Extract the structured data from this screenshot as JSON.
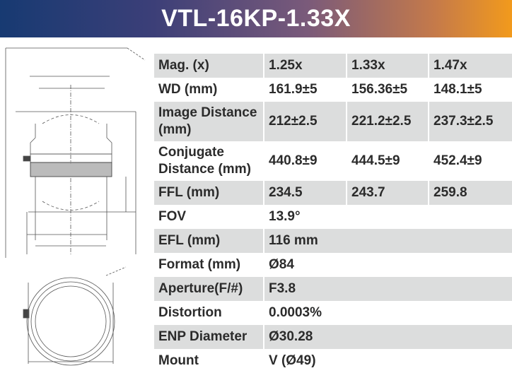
{
  "title": "VTL-16KP-1.33X",
  "colors": {
    "header_start": "#173a72",
    "header_end": "#f29a1c",
    "shaded_row": "#dcdddd"
  },
  "specs": [
    {
      "label": "Mag. (x)",
      "values": [
        "1.25x",
        "1.33x",
        "1.47x"
      ]
    },
    {
      "label": "WD (mm)",
      "values": [
        "161.9±5",
        "156.36±5",
        "148.1±5"
      ]
    },
    {
      "label": "Image Distance (mm)",
      "values": [
        "212±2.5",
        "221.2±2.5",
        "237.3±2.5"
      ]
    },
    {
      "label": "Conjugate Distance (mm)",
      "values": [
        "440.8±9",
        "444.5±9",
        "452.4±9"
      ]
    },
    {
      "label": "FFL (mm)",
      "values": [
        "234.5",
        "243.7",
        "259.8"
      ]
    },
    {
      "label": "FOV",
      "values": [
        "13.9°"
      ]
    },
    {
      "label": "EFL (mm)",
      "values": [
        "116 mm"
      ]
    },
    {
      "label": "Format (mm)",
      "values": [
        "Ø84"
      ]
    },
    {
      "label": "Aperture(F/#)",
      "values": [
        "F3.8"
      ]
    },
    {
      "label": "Distortion",
      "values": [
        "0.0003%"
      ]
    },
    {
      "label": "ENP Diameter",
      "values": [
        "Ø30.28"
      ]
    },
    {
      "label": "Mount",
      "values": [
        "V (Ø49)"
      ]
    }
  ]
}
